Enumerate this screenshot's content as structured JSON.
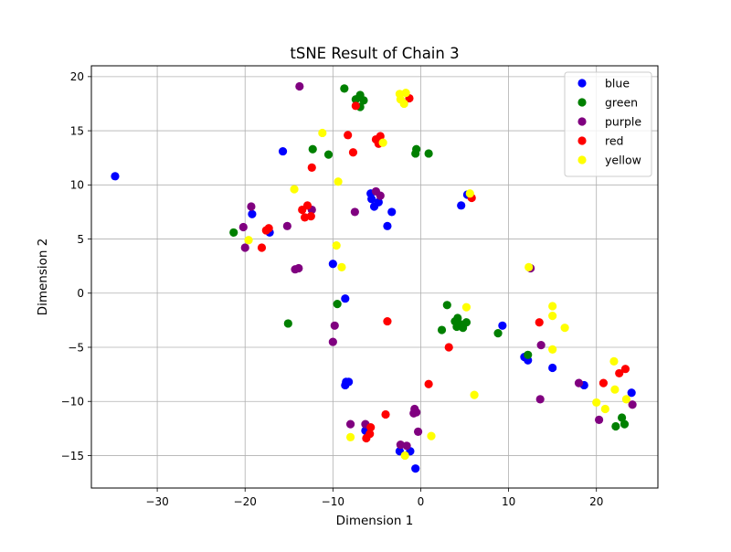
{
  "chart_data": {
    "type": "scatter",
    "title": "tSNE Result of Chain 3",
    "xlabel": "Dimension 1",
    "ylabel": "Dimension 2",
    "xlim": [
      -37.5,
      27.0
    ],
    "ylim": [
      -18.0,
      21.0
    ],
    "xticks": [
      -30,
      -20,
      -10,
      0,
      10,
      20
    ],
    "yticks": [
      -15,
      -10,
      -5,
      0,
      5,
      10,
      15,
      20
    ],
    "x_tick_labels": [
      "−30",
      "−20",
      "−10",
      "0",
      "10",
      "20"
    ],
    "y_tick_labels": [
      "−15",
      "−10",
      "−5",
      "0",
      "5",
      "10",
      "15",
      "20"
    ],
    "grid": true,
    "legend_position": "top-right",
    "series": [
      {
        "name": "blue",
        "color": "#0000ff",
        "points": [
          [
            -34.8,
            10.8
          ],
          [
            -15.7,
            13.1
          ],
          [
            -19.2,
            7.3
          ],
          [
            -17.2,
            5.6
          ],
          [
            -10.0,
            2.7
          ],
          [
            -8.6,
            -0.5
          ],
          [
            -5.7,
            9.2
          ],
          [
            -5.6,
            8.7
          ],
          [
            -5.3,
            8.0
          ],
          [
            -4.8,
            8.4
          ],
          [
            -3.3,
            7.5
          ],
          [
            -3.8,
            6.2
          ],
          [
            4.6,
            8.1
          ],
          [
            5.3,
            9.1
          ],
          [
            -8.5,
            -8.2
          ],
          [
            -8.6,
            -8.5
          ],
          [
            -8.2,
            -8.2
          ],
          [
            9.3,
            -3.0
          ],
          [
            11.8,
            -5.9
          ],
          [
            12.2,
            -6.2
          ],
          [
            15.0,
            -6.9
          ],
          [
            18.6,
            -8.5
          ],
          [
            24.0,
            -9.2
          ],
          [
            -6.3,
            -12.7
          ],
          [
            -2.4,
            -14.6
          ],
          [
            -1.2,
            -14.6
          ],
          [
            -0.6,
            -16.2
          ]
        ]
      },
      {
        "name": "green",
        "color": "#008000",
        "points": [
          [
            -21.3,
            5.6
          ],
          [
            -15.1,
            -2.8
          ],
          [
            -12.3,
            13.3
          ],
          [
            -10.5,
            12.8
          ],
          [
            -8.7,
            18.9
          ],
          [
            -7.4,
            17.9
          ],
          [
            -6.9,
            18.3
          ],
          [
            -6.5,
            17.8
          ],
          [
            -6.9,
            17.2
          ],
          [
            -0.5,
            13.3
          ],
          [
            -0.6,
            12.9
          ],
          [
            0.9,
            12.9
          ],
          [
            -9.5,
            -1.0
          ],
          [
            2.4,
            -3.4
          ],
          [
            3.0,
            -1.1
          ],
          [
            3.9,
            -2.6
          ],
          [
            4.2,
            -2.3
          ],
          [
            4.1,
            -3.1
          ],
          [
            4.8,
            -3.2
          ],
          [
            5.2,
            -2.7
          ],
          [
            4.6,
            -2.9
          ],
          [
            8.8,
            -3.7
          ],
          [
            12.2,
            -5.7
          ],
          [
            22.2,
            -12.3
          ],
          [
            22.9,
            -11.5
          ],
          [
            23.2,
            -12.1
          ]
        ]
      },
      {
        "name": "purple",
        "color": "#800080",
        "points": [
          [
            -13.8,
            19.1
          ],
          [
            -19.3,
            8.0
          ],
          [
            -20.2,
            6.1
          ],
          [
            -20.0,
            4.2
          ],
          [
            -15.2,
            6.2
          ],
          [
            -12.4,
            7.7
          ],
          [
            -14.3,
            2.2
          ],
          [
            -13.9,
            2.3
          ],
          [
            -7.5,
            7.5
          ],
          [
            -5.1,
            9.4
          ],
          [
            -4.6,
            9.0
          ],
          [
            -9.8,
            -3.0
          ],
          [
            -10.0,
            -4.5
          ],
          [
            12.5,
            2.3
          ],
          [
            13.7,
            -4.8
          ],
          [
            13.6,
            -9.8
          ],
          [
            18.0,
            -8.3
          ],
          [
            20.3,
            -11.7
          ],
          [
            24.1,
            -10.3
          ],
          [
            -8.0,
            -12.1
          ],
          [
            -6.3,
            -12.1
          ],
          [
            -2.3,
            -14.0
          ],
          [
            -1.6,
            -14.1
          ],
          [
            -0.7,
            -10.7
          ],
          [
            -0.5,
            -11.0
          ],
          [
            -0.8,
            -11.1
          ],
          [
            -0.3,
            -12.8
          ]
        ]
      },
      {
        "name": "red",
        "color": "#ff0000",
        "points": [
          [
            -18.1,
            4.2
          ],
          [
            -17.6,
            5.8
          ],
          [
            -17.3,
            6.0
          ],
          [
            -13.5,
            7.7
          ],
          [
            -12.9,
            8.1
          ],
          [
            -13.2,
            7.0
          ],
          [
            -12.5,
            7.1
          ],
          [
            -12.4,
            11.6
          ],
          [
            -8.3,
            14.6
          ],
          [
            -7.7,
            13.0
          ],
          [
            -7.4,
            17.3
          ],
          [
            -5.1,
            14.2
          ],
          [
            -4.8,
            13.8
          ],
          [
            -4.6,
            14.5
          ],
          [
            -1.3,
            18.0
          ],
          [
            5.8,
            8.8
          ],
          [
            -3.8,
            -2.6
          ],
          [
            3.2,
            -5.0
          ],
          [
            13.5,
            -2.7
          ],
          [
            0.9,
            -8.4
          ],
          [
            20.8,
            -8.3
          ],
          [
            22.6,
            -7.4
          ],
          [
            23.3,
            -7.0
          ],
          [
            -4.0,
            -11.2
          ],
          [
            -5.7,
            -12.4
          ],
          [
            -5.8,
            -13.0
          ],
          [
            -6.2,
            -13.4
          ]
        ]
      },
      {
        "name": "yellow",
        "color": "#ffff00",
        "points": [
          [
            -11.2,
            14.8
          ],
          [
            -9.4,
            10.3
          ],
          [
            -14.4,
            9.6
          ],
          [
            -19.6,
            4.9
          ],
          [
            -9.6,
            4.4
          ],
          [
            -9.0,
            2.4
          ],
          [
            -4.3,
            13.9
          ],
          [
            -2.4,
            18.4
          ],
          [
            -1.7,
            18.5
          ],
          [
            -1.9,
            17.5
          ],
          [
            -2.3,
            17.9
          ],
          [
            5.6,
            9.2
          ],
          [
            5.2,
            -1.3
          ],
          [
            12.3,
            2.4
          ],
          [
            15.0,
            -1.2
          ],
          [
            15.0,
            -2.1
          ],
          [
            16.4,
            -3.2
          ],
          [
            15.0,
            -5.2
          ],
          [
            6.1,
            -9.4
          ],
          [
            22.0,
            -6.3
          ],
          [
            20.0,
            -10.1
          ],
          [
            21.0,
            -10.7
          ],
          [
            22.1,
            -8.9
          ],
          [
            23.4,
            -9.8
          ],
          [
            -8.0,
            -13.3
          ],
          [
            -1.8,
            -15.0
          ],
          [
            1.2,
            -13.2
          ]
        ]
      }
    ]
  }
}
